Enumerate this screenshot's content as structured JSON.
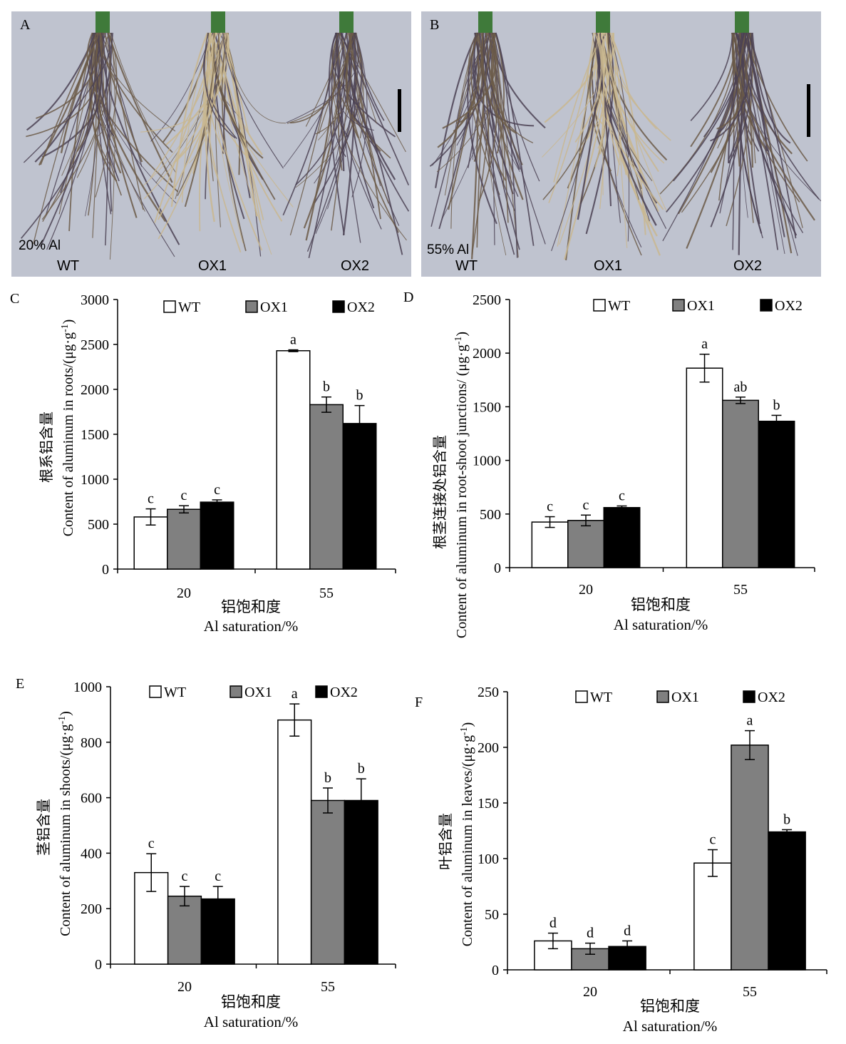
{
  "photos": [
    {
      "panel": "A",
      "condition": "20% Al",
      "labels": [
        "WT",
        "OX1",
        "OX2"
      ]
    },
    {
      "panel": "B",
      "condition": "55% Al",
      "labels": [
        "WT",
        "OX1",
        "OX2"
      ]
    }
  ],
  "colors": {
    "WT": "#ffffff",
    "OX1": "#808080",
    "OX2": "#000000",
    "photo_bg": "#bfc3cf",
    "root": "#5a4a3a"
  },
  "chart_data": [
    {
      "panel": "C",
      "type": "bar",
      "categories": [
        "20",
        "55"
      ],
      "series": [
        {
          "name": "WT",
          "values": [
            580,
            2430
          ],
          "errors": [
            90,
            10
          ],
          "letters": [
            "c",
            "a"
          ]
        },
        {
          "name": "OX1",
          "values": [
            665,
            1830
          ],
          "errors": [
            40,
            85
          ],
          "letters": [
            "c",
            "b"
          ]
        },
        {
          "name": "OX2",
          "values": [
            745,
            1620
          ],
          "errors": [
            25,
            200
          ],
          "letters": [
            "c",
            "b"
          ]
        }
      ],
      "ylim": [
        0,
        3000
      ],
      "yticks": [
        "0",
        "500",
        "1000",
        "1500",
        "2000",
        "2500",
        "3000"
      ],
      "ylabel_cn": "根系铝含量",
      "ylabel_en": "Content of aluminum in roots/(μg·g",
      "xlabel_cn": "铝饱和度",
      "xlabel_en": "Al saturation/%",
      "legend": "top"
    },
    {
      "panel": "D",
      "type": "bar",
      "categories": [
        "20",
        "55"
      ],
      "series": [
        {
          "name": "WT",
          "values": [
            425,
            1860
          ],
          "errors": [
            50,
            130
          ],
          "letters": [
            "c",
            "a"
          ]
        },
        {
          "name": "OX1",
          "values": [
            440,
            1560
          ],
          "errors": [
            50,
            30
          ],
          "letters": [
            "c",
            "ab"
          ]
        },
        {
          "name": "OX2",
          "values": [
            560,
            1365
          ],
          "errors": [
            15,
            55
          ],
          "letters": [
            "c",
            "b"
          ]
        }
      ],
      "ylim": [
        0,
        2500
      ],
      "yticks": [
        "0",
        "500",
        "1000",
        "1500",
        "2000",
        "2500"
      ],
      "ylabel_cn": "根茎连接处铝含量",
      "ylabel_en": "Content of aluminum in root-shoot junctions/ (μg·g",
      "xlabel_cn": "铝饱和度",
      "xlabel_en": "Al saturation/%",
      "legend": "top"
    },
    {
      "panel": "E",
      "type": "bar",
      "categories": [
        "20",
        "55"
      ],
      "series": [
        {
          "name": "WT",
          "values": [
            330,
            880
          ],
          "errors": [
            68,
            58
          ],
          "letters": [
            "c",
            "a"
          ]
        },
        {
          "name": "OX1",
          "values": [
            245,
            590
          ],
          "errors": [
            35,
            45
          ],
          "letters": [
            "c",
            "b"
          ]
        },
        {
          "name": "OX2",
          "values": [
            235,
            590
          ],
          "errors": [
            45,
            78
          ],
          "letters": [
            "c",
            "b"
          ]
        }
      ],
      "ylim": [
        0,
        1000
      ],
      "yticks": [
        "0",
        "200",
        "400",
        "600",
        "800",
        "1000"
      ],
      "ylabel_cn": "茎铝含量",
      "ylabel_en": "Content of aluminum in shoots/(μg·g",
      "xlabel_cn": "铝饱和度",
      "xlabel_en": "Al saturation/%",
      "legend": "top"
    },
    {
      "panel": "F",
      "type": "bar",
      "categories": [
        "20",
        "55"
      ],
      "series": [
        {
          "name": "WT",
          "values": [
            26,
            96
          ],
          "errors": [
            7,
            12
          ],
          "letters": [
            "d",
            "c"
          ]
        },
        {
          "name": "OX1",
          "values": [
            19,
            202
          ],
          "errors": [
            5,
            13
          ],
          "letters": [
            "d",
            "a"
          ]
        },
        {
          "name": "OX2",
          "values": [
            21,
            124
          ],
          "errors": [
            5,
            2
          ],
          "letters": [
            "d",
            "b"
          ]
        }
      ],
      "ylim": [
        0,
        250
      ],
      "yticks": [
        "0",
        "50",
        "100",
        "150",
        "200",
        "250"
      ],
      "ylabel_cn": "叶铝含量",
      "ylabel_en": "Content of aluminum in leaves/(μg·g",
      "xlabel_cn": "铝饱和度",
      "xlabel_en": "Al saturation/%",
      "legend": "top"
    }
  ],
  "unit_superscript": "-1",
  "unit_close": ")"
}
